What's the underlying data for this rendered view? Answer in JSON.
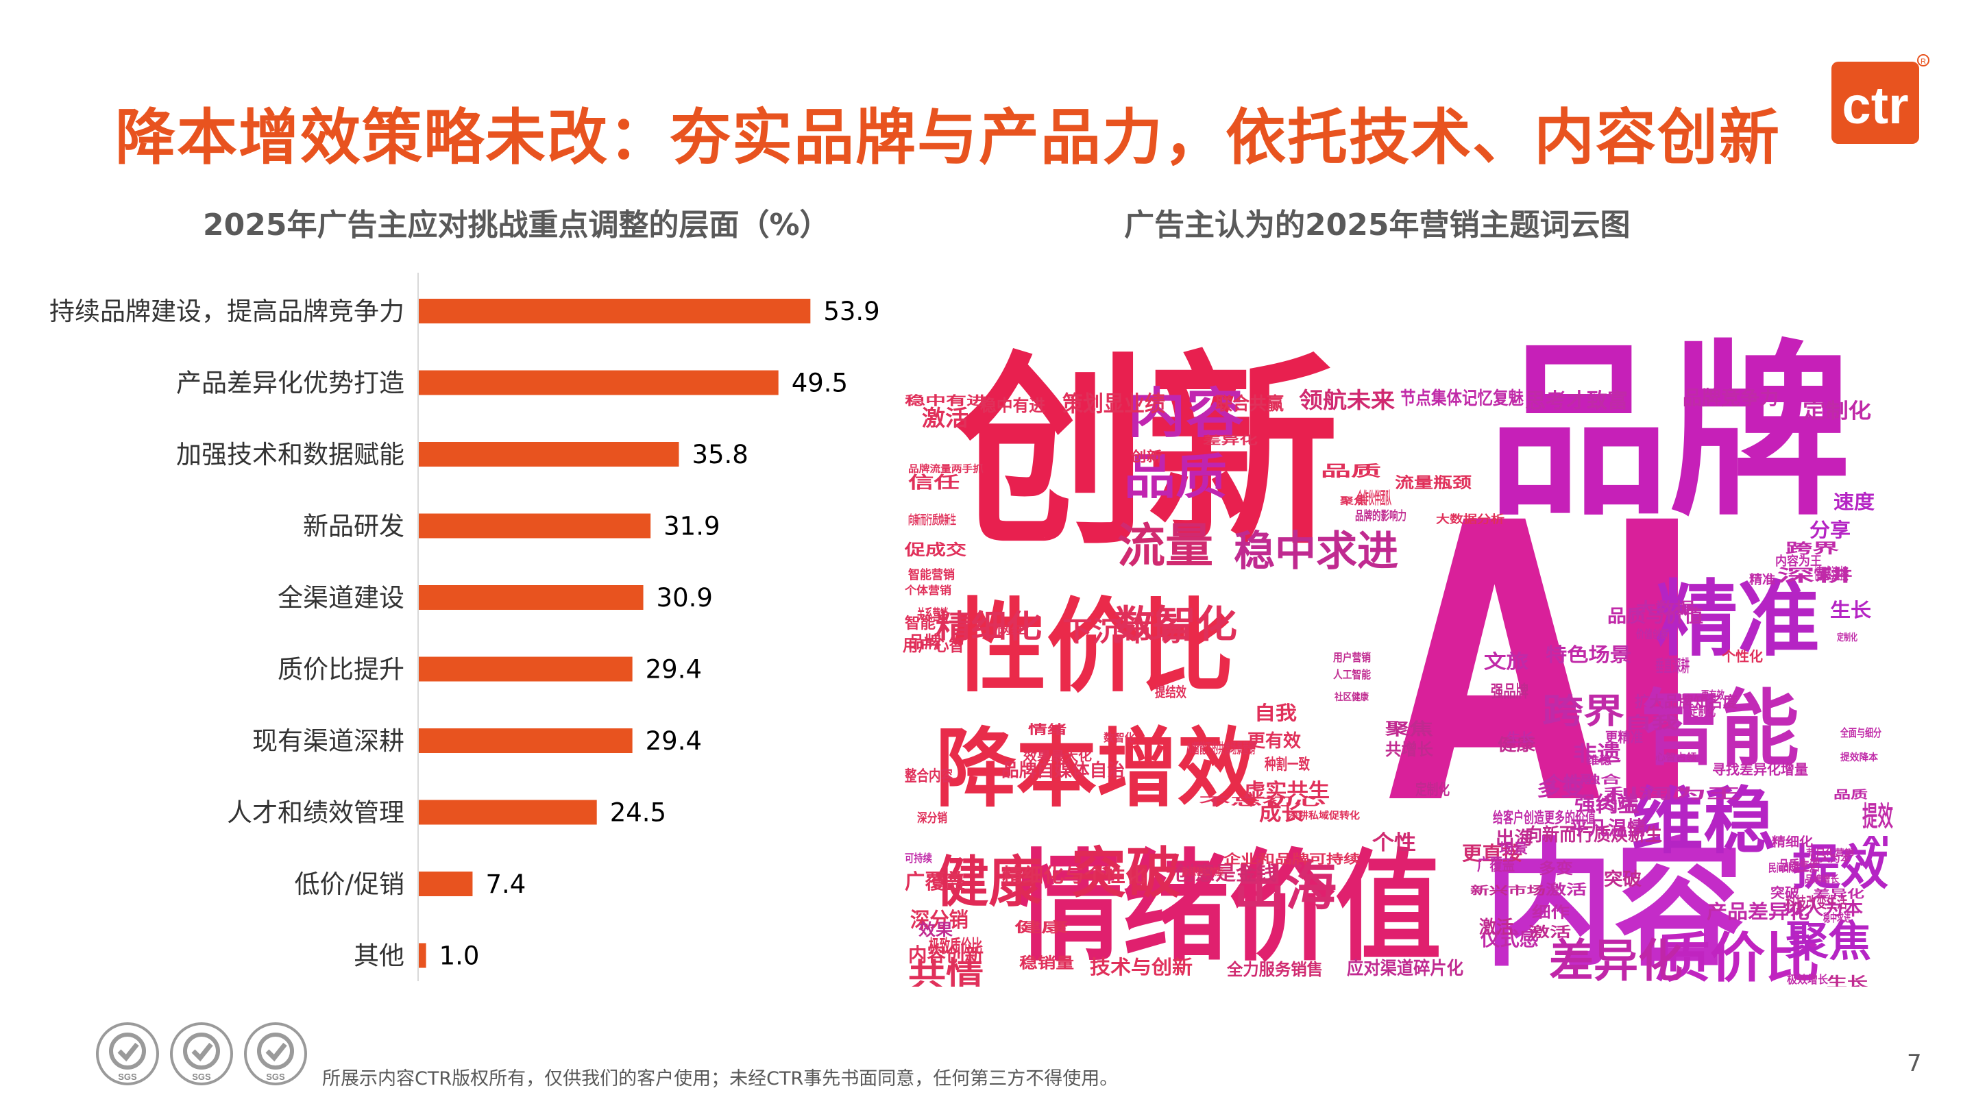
{
  "title": "降本增效策略未改：夯实品牌与产品力，依托技术、内容创新",
  "logo_text": "ctr",
  "left_subtitle": "2025年广告主应对挑战重点调整的层面（%）",
  "right_subtitle": "广告主认为的2025年营销主题词云图",
  "footer": "所展示内容CTR版权所有，仅供我们的客户使用；未经CTR事先书面同意，任何第三方不得使用。",
  "page_number": "7",
  "cert_labels": [
    "SGS",
    "SGS",
    "SGS"
  ],
  "colors": {
    "accent": "#e8531f",
    "bar": "#e8531f"
  },
  "chart_data": [
    {
      "type": "bar",
      "orientation": "horizontal",
      "title": "2025年广告主应对挑战重点调整的层面（%）",
      "categories": [
        "持续品牌建设，提高品牌竞争力",
        "产品差异化优势打造",
        "加强技术和数据赋能",
        "新品研发",
        "全渠道建设",
        "质价比提升",
        "现有渠道深耕",
        "人才和绩效管理",
        "低价/促销",
        "其他"
      ],
      "values": [
        53.9,
        49.5,
        35.8,
        31.9,
        30.9,
        29.4,
        29.4,
        24.5,
        7.4,
        1.0
      ],
      "value_labels": [
        "53.9",
        "49.5",
        "35.8",
        "31.9",
        "30.9",
        "29.4",
        "29.4",
        "24.5",
        "7.4",
        "1.0"
      ],
      "xlim": [
        0,
        60
      ],
      "grid": false,
      "color": "#e8531f"
    },
    {
      "type": "wordcloud",
      "title": "广告主认为的2025年营销主题词云图",
      "words": [
        {
          "text": "创新",
          "weight": 100,
          "color": "#e8204f"
        },
        {
          "text": "品牌",
          "weight": 92,
          "color": "#c620b8"
        },
        {
          "text": "AI",
          "weight": 100,
          "color": "#d9209a"
        },
        {
          "text": "情绪价值",
          "weight": 72,
          "color": "#e0206e"
        },
        {
          "text": "内容",
          "weight": 80,
          "color": "#c42cc8"
        },
        {
          "text": "性价比",
          "weight": 58,
          "color": "#ea2a4a"
        },
        {
          "text": "降本增效",
          "weight": 50,
          "color": "#e82c4a"
        },
        {
          "text": "智能",
          "weight": 44,
          "color": "#c22ab6"
        },
        {
          "text": "精准",
          "weight": 44,
          "color": "#b524c4"
        },
        {
          "text": "维稳",
          "weight": 40,
          "color": "#b524c4"
        },
        {
          "text": "内容",
          "weight": 32,
          "color": "#c026b0"
        },
        {
          "text": "质价比",
          "weight": 32,
          "color": "#c024c0"
        },
        {
          "text": "差异化",
          "weight": 28,
          "color": "#c026a8"
        },
        {
          "text": "品质",
          "weight": 28,
          "color": "#c024b0"
        },
        {
          "text": "健康",
          "weight": 30,
          "color": "#e02a56"
        },
        {
          "text": "突破",
          "weight": 30,
          "color": "#e02a56"
        },
        {
          "text": "出海",
          "weight": 30,
          "color": "#d82a70"
        },
        {
          "text": "提效",
          "weight": 28,
          "color": "#b524c4"
        },
        {
          "text": "流量",
          "weight": 26,
          "color": "#d02a70"
        },
        {
          "text": "稳中求进",
          "weight": 24,
          "color": "#c02a90"
        },
        {
          "text": "聚焦",
          "weight": 24,
          "color": "#b524c4"
        },
        {
          "text": "数智化",
          "weight": 22,
          "color": "#e0305a"
        },
        {
          "text": "精细化",
          "weight": 18,
          "color": "#e0305a"
        },
        {
          "text": "跨界",
          "weight": 18,
          "color": "#c02aa8"
        },
        {
          "text": "共情",
          "weight": 18,
          "color": "#e0305a"
        },
        {
          "text": "下沉市场",
          "weight": 16,
          "color": "#e0305a"
        },
        {
          "text": "策划显业绩",
          "weight": 12,
          "color": "#e0305a"
        },
        {
          "text": "领航未来",
          "weight": 12,
          "color": "#d02a70"
        },
        {
          "text": "思考才致富",
          "weight": 12,
          "color": "#c02aa8"
        },
        {
          "text": "品牌竞争力",
          "weight": 12,
          "color": "#c02aa8"
        },
        {
          "text": "节点集体记忆复魅",
          "weight": 10,
          "color": "#c02aa8"
        },
        {
          "text": "定制化",
          "weight": 12,
          "color": "#c02aa8"
        },
        {
          "text": "激活",
          "weight": 12,
          "color": "#e0305a"
        },
        {
          "text": "个性",
          "weight": 12,
          "color": "#d02a70"
        },
        {
          "text": "更直接",
          "weight": 12,
          "color": "#d02a70"
        },
        {
          "text": "向新而行质焕新生",
          "weight": 10,
          "color": "#c02a90"
        },
        {
          "text": "成长",
          "weight": 10,
          "color": "#e0305a"
        },
        {
          "text": "虚实共生",
          "weight": 10,
          "color": "#e0305a"
        },
        {
          "text": "品牌自媒体自治",
          "weight": 10,
          "color": "#e0305a"
        },
        {
          "text": "精细化与个性化",
          "weight": 10,
          "color": "#e0305a"
        },
        {
          "text": "创意是金钱",
          "weight": 10,
          "color": "#d02a70"
        },
        {
          "text": "深分销",
          "weight": 12,
          "color": "#e0305a"
        },
        {
          "text": "广覆盖",
          "weight": 12,
          "color": "#e0305a"
        },
        {
          "text": "内容创新",
          "weight": 12,
          "color": "#e0305a"
        },
        {
          "text": "技术与创新",
          "weight": 10,
          "color": "#e0305a"
        },
        {
          "text": "全力服务销售",
          "weight": 9,
          "color": "#d02a70"
        },
        {
          "text": "应对渠道碎片化",
          "weight": 10,
          "color": "#c02a90"
        },
        {
          "text": "仪式感",
          "weight": 12,
          "color": "#c02aa8"
        },
        {
          "text": "产品差异化",
          "weight": 10,
          "color": "#c02aa8"
        },
        {
          "text": "以人为本",
          "weight": 10,
          "color": "#c02aa8"
        },
        {
          "text": "强终端",
          "weight": 10,
          "color": "#c02aa8"
        },
        {
          "text": "平凡温情",
          "weight": 10,
          "color": "#c02aa8"
        },
        {
          "text": "非遗",
          "weight": 10,
          "color": "#c02aa8"
        },
        {
          "text": "多变",
          "weight": 10,
          "color": "#c02aa8"
        },
        {
          "text": "内生",
          "weight": 10,
          "color": "#c02aa8"
        },
        {
          "text": "特色场景",
          "weight": 10,
          "color": "#c02aa8"
        },
        {
          "text": "文旅",
          "weight": 10,
          "color": "#c02aa8"
        },
        {
          "text": "品质与价值",
          "weight": 9,
          "color": "#c02aa8"
        },
        {
          "text": "生长",
          "weight": 9,
          "color": "#b524c4"
        },
        {
          "text": "分享",
          "weight": 9,
          "color": "#b524c4"
        },
        {
          "text": "速度",
          "weight": 9,
          "color": "#b524c4"
        },
        {
          "text": "扩大品牌知名度",
          "weight": 8,
          "color": "#c02aa8"
        },
        {
          "text": "寻找差异化增量",
          "weight": 7,
          "color": "#c02aa8"
        },
        {
          "text": "联合共赢",
          "weight": 9,
          "color": "#e0305a"
        },
        {
          "text": "稳中有进",
          "weight": 8,
          "color": "#e0305a"
        },
        {
          "text": "自我",
          "weight": 9,
          "color": "#e0305a"
        },
        {
          "text": "更有效",
          "weight": 8,
          "color": "#e0305a"
        },
        {
          "text": "健康",
          "weight": 9,
          "color": "#c02a90"
        },
        {
          "text": "出海",
          "weight": 8,
          "color": "#c02a90"
        },
        {
          "text": "突破",
          "weight": 8,
          "color": "#c02a90"
        },
        {
          "text": "激活",
          "weight": 8,
          "color": "#c02a90"
        },
        {
          "text": "聚焦",
          "weight": 8,
          "color": "#c02a90"
        },
        {
          "text": "共增长",
          "weight": 7,
          "color": "#c02a90"
        },
        {
          "text": "强品牌",
          "weight": 7,
          "color": "#c02a90"
        },
        {
          "text": "效果",
          "weight": 8,
          "color": "#c02a90"
        },
        {
          "text": "创新",
          "weight": 7,
          "color": "#e0305a"
        },
        {
          "text": "品牌",
          "weight": 7,
          "color": "#e0305a"
        },
        {
          "text": "智能",
          "weight": 7,
          "color": "#e0305a"
        },
        {
          "text": "信任",
          "weight": 7,
          "color": "#e0305a"
        },
        {
          "text": "促成交",
          "weight": 7,
          "color": "#e0305a"
        },
        {
          "text": "整合内容",
          "weight": 7,
          "color": "#e0305a"
        },
        {
          "text": "稳销量",
          "weight": 7,
          "color": "#e0305a"
        },
        {
          "text": "种割一致",
          "weight": 7,
          "color": "#e0305a"
        },
        {
          "text": "提结效",
          "weight": 7,
          "color": "#e0305a"
        },
        {
          "text": "品质",
          "weight": 7,
          "color": "#e0305a"
        },
        {
          "text": "流量瓶颈",
          "weight": 7,
          "color": "#e0305a"
        },
        {
          "text": "合作伙伴团队",
          "weight": 7,
          "color": "#e0305a"
        },
        {
          "text": "聚焦",
          "weight": 7,
          "color": "#e0305a"
        },
        {
          "text": "个性化",
          "weight": 6,
          "color": "#e0305a"
        },
        {
          "text": "定制化",
          "weight": 6,
          "color": "#c02aa8"
        },
        {
          "text": "精准",
          "weight": 6,
          "color": "#c02aa8"
        },
        {
          "text": "深耕",
          "weight": 6,
          "color": "#c02aa8"
        },
        {
          "text": "情感连接",
          "weight": 7,
          "color": "#c02aa8"
        },
        {
          "text": "跨界",
          "weight": 6,
          "color": "#c02aa8"
        },
        {
          "text": "内容为王",
          "weight": 6,
          "color": "#c02aa8"
        },
        {
          "text": "价值创新",
          "weight": 6,
          "color": "#c02aa8"
        },
        {
          "text": "大数据",
          "weight": 6,
          "color": "#c02aa8"
        },
        {
          "text": "垂直深耕",
          "weight": 6,
          "color": "#c02aa8"
        },
        {
          "text": "自我",
          "weight": 7,
          "color": "#c02aa8"
        },
        {
          "text": "更精准",
          "weight": 7,
          "color": "#c02aa8"
        },
        {
          "text": "更有效",
          "weight": 6,
          "color": "#c02aa8"
        },
        {
          "text": "提效",
          "weight": 6,
          "color": "#c02aa8"
        },
        {
          "text": "AI",
          "weight": 8,
          "color": "#b524c4"
        },
        {
          "text": "个性",
          "weight": 6,
          "color": "#c02aa8"
        },
        {
          "text": "多变",
          "weight": 7,
          "color": "#c02aa8"
        },
        {
          "text": "激活",
          "weight": 6,
          "color": "#c02aa8"
        },
        {
          "text": "定制化",
          "weight": 6,
          "color": "#c02aa8"
        },
        {
          "text": "生长",
          "weight": 6,
          "color": "#c02aa8"
        },
        {
          "text": "场景",
          "weight": 6,
          "color": "#c02aa8"
        },
        {
          "text": "维稳",
          "weight": 6,
          "color": "#c02aa8"
        },
        {
          "text": "融合",
          "weight": 6,
          "color": "#c02aa8"
        },
        {
          "text": "利润为王",
          "weight": 6,
          "color": "#c02aa8"
        },
        {
          "text": "给客户创造更多的价值",
          "weight": 5,
          "color": "#c02aa8"
        },
        {
          "text": "深耕私域促转化",
          "weight": 6,
          "color": "#e0305a"
        },
        {
          "text": "企业和品牌可持续",
          "weight": 5,
          "color": "#e0305a"
        },
        {
          "text": "面对消费者作为工作的重点",
          "weight": 5,
          "color": "#e0305a"
        },
        {
          "text": "不忘初心",
          "weight": 5,
          "color": "#e0305a"
        },
        {
          "text": "AI智能下的共情场景营销",
          "weight": 5,
          "color": "#e0305a"
        },
        {
          "text": "效果最大化",
          "weight": 5,
          "color": "#e0305a"
        },
        {
          "text": "极致质价比",
          "weight": 5,
          "color": "#e0305a"
        },
        {
          "text": "深分销",
          "weight": 5,
          "color": "#e0305a"
        },
        {
          "text": "健康",
          "weight": 5,
          "color": "#e0305a"
        },
        {
          "text": "稳中有进",
          "weight": 5,
          "color": "#e0305a"
        },
        {
          "text": "品牌流量两手抓",
          "weight": 6,
          "color": "#e0305a"
        },
        {
          "text": "向新而行质焕新生",
          "weight": 5,
          "color": "#e0305a"
        },
        {
          "text": "智能营销",
          "weight": 5,
          "color": "#e0305a"
        },
        {
          "text": "个体营销",
          "weight": 5,
          "color": "#e0305a"
        },
        {
          "text": "用户心智",
          "weight": 5,
          "color": "#e0305a"
        },
        {
          "text": "关系营销",
          "weight": 6,
          "color": "#e0305a"
        },
        {
          "text": "网红",
          "weight": 6,
          "color": "#e0305a"
        },
        {
          "text": "情绪",
          "weight": 5,
          "color": "#e0305a"
        },
        {
          "text": "数智化",
          "weight": 5,
          "color": "#e0305a"
        },
        {
          "text": "差异化",
          "weight": 5,
          "color": "#e0305a"
        },
        {
          "text": "大数据分析",
          "weight": 5,
          "color": "#e0305a"
        },
        {
          "text": "品牌的影响力",
          "weight": 5,
          "color": "#c02a90"
        },
        {
          "text": "用户营销",
          "weight": 5,
          "color": "#c02a90"
        },
        {
          "text": "人工智能",
          "weight": 5,
          "color": "#c02a90"
        },
        {
          "text": "社区健康",
          "weight": 5,
          "color": "#c02a90"
        },
        {
          "text": "新兴市场",
          "weight": 5,
          "color": "#c02a90"
        },
        {
          "text": "科技改变生活",
          "weight": 5,
          "color": "#c02a90"
        },
        {
          "text": "以人为本",
          "weight": 5,
          "color": "#c02aa8"
        },
        {
          "text": "节日化营销",
          "weight": 5,
          "color": "#c02aa8"
        },
        {
          "text": "民间非遗工艺",
          "weight": 5,
          "color": "#c02aa8"
        },
        {
          "text": "品牌增长",
          "weight": 5,
          "color": "#c02aa8"
        },
        {
          "text": "品质生活",
          "weight": 5,
          "color": "#c02aa8"
        },
        {
          "text": "广覆盖",
          "weight": 5,
          "color": "#c02aa8"
        },
        {
          "text": "突破",
          "weight": 5,
          "color": "#c02aa8"
        },
        {
          "text": "细作",
          "weight": 5,
          "color": "#c02aa8"
        },
        {
          "text": "激活",
          "weight": 5,
          "color": "#c02a90"
        },
        {
          "text": "定制化",
          "weight": 5,
          "color": "#c02a90"
        },
        {
          "text": "生长",
          "weight": 5,
          "color": "#c02a90"
        },
        {
          "text": "极效增长",
          "weight": 5,
          "color": "#c02aa8"
        },
        {
          "text": "精细化",
          "weight": 5,
          "color": "#c02aa8"
        },
        {
          "text": "差异化",
          "weight": 5,
          "color": "#c02aa8"
        },
        {
          "text": "全面与细分",
          "weight": 5,
          "color": "#c02aa8"
        },
        {
          "text": "提效降本",
          "weight": 5,
          "color": "#c02aa8"
        },
        {
          "text": "心智占领",
          "weight": 5,
          "color": "#c02aa8"
        },
        {
          "text": "稳中求进",
          "weight": 5,
          "color": "#c02aa8"
        },
        {
          "text": "品质",
          "weight": 5,
          "color": "#c02aa8"
        },
        {
          "text": "可持续",
          "weight": 5,
          "color": "#c02aa8"
        },
        {
          "text": "绿色",
          "weight": 5,
          "color": "#c02aa8"
        }
      ]
    }
  ]
}
